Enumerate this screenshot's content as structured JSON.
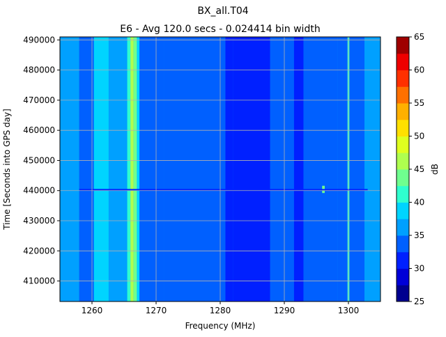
{
  "chart_data": {
    "type": "heatmap",
    "title": "BX_all.T04",
    "subtitle": "E6 - Avg 120.0 secs - 0.024414 bin width",
    "xlabel": "Frequency (MHz)",
    "ylabel": "Time [Seconds into GPS day]",
    "xlim": [
      1255,
      1305
    ],
    "ylim": [
      403200,
      491000
    ],
    "x_ticks": [
      1260,
      1270,
      1280,
      1290,
      1300
    ],
    "y_ticks": [
      410000,
      420000,
      430000,
      440000,
      450000,
      460000,
      470000,
      480000,
      490000
    ],
    "grid": true,
    "colorbar": {
      "label": "dB",
      "min": 25,
      "max": 65,
      "ticks": [
        25,
        30,
        35,
        40,
        45,
        50,
        55,
        60,
        65
      ],
      "levels": [
        {
          "from": 25.0,
          "to": 27.5,
          "color": "#00008f"
        },
        {
          "from": 27.5,
          "to": 30.0,
          "color": "#0000d8"
        },
        {
          "from": 30.0,
          "to": 32.5,
          "color": "#0020ff"
        },
        {
          "from": 32.5,
          "to": 35.0,
          "color": "#0060ff"
        },
        {
          "from": 35.0,
          "to": 37.5,
          "color": "#00a0ff"
        },
        {
          "from": 37.5,
          "to": 40.0,
          "color": "#00d4ff"
        },
        {
          "from": 40.0,
          "to": 42.5,
          "color": "#2fffcf"
        },
        {
          "from": 42.5,
          "to": 45.0,
          "color": "#6fff8f"
        },
        {
          "from": 45.0,
          "to": 47.5,
          "color": "#afff4f"
        },
        {
          "from": 47.5,
          "to": 50.0,
          "color": "#dfff1f"
        },
        {
          "from": 50.0,
          "to": 52.5,
          "color": "#ffe000"
        },
        {
          "from": 52.5,
          "to": 55.0,
          "color": "#ffb000"
        },
        {
          "from": 55.0,
          "to": 57.5,
          "color": "#ff7000"
        },
        {
          "from": 57.5,
          "to": 60.0,
          "color": "#ff3000"
        },
        {
          "from": 60.0,
          "to": 62.5,
          "color": "#ee0000"
        },
        {
          "from": 62.5,
          "to": 65.0,
          "color": "#9f0000"
        }
      ]
    },
    "background_level_db": 36,
    "frequency_bands": [
      {
        "from": 1255.0,
        "to": 1258.0,
        "db": 36
      },
      {
        "from": 1258.0,
        "to": 1260.3,
        "db": 33
      },
      {
        "from": 1260.3,
        "to": 1262.6,
        "db": 38
      },
      {
        "from": 1262.6,
        "to": 1265.5,
        "db": 35
      },
      {
        "from": 1265.5,
        "to": 1266.0,
        "db": 41
      },
      {
        "from": 1266.0,
        "to": 1266.5,
        "db": 46
      },
      {
        "from": 1266.5,
        "to": 1267.0,
        "db": 44
      },
      {
        "from": 1267.0,
        "to": 1267.4,
        "db": 39
      },
      {
        "from": 1267.4,
        "to": 1271.2,
        "db": 33
      },
      {
        "from": 1271.2,
        "to": 1280.8,
        "db": 34
      },
      {
        "from": 1280.8,
        "to": 1282.0,
        "db": 32
      },
      {
        "from": 1282.0,
        "to": 1287.8,
        "db": 31
      },
      {
        "from": 1287.8,
        "to": 1291.5,
        "db": 34
      },
      {
        "from": 1291.5,
        "to": 1293.0,
        "db": 32
      },
      {
        "from": 1293.0,
        "to": 1298.3,
        "db": 34
      },
      {
        "from": 1298.3,
        "to": 1302.5,
        "db": 33
      },
      {
        "from": 1302.5,
        "to": 1305.0,
        "db": 36
      }
    ],
    "spikes": [
      {
        "x": 1300.0,
        "width": 0.3,
        "db": 41,
        "t_from": 403200,
        "t_to": 491000
      },
      {
        "x": 1296.1,
        "width": 0.4,
        "db": 44,
        "t_from": 439200,
        "t_to": 441600
      }
    ],
    "interference_line": {
      "t": 440300,
      "x_from": 1258,
      "x_to": 1303,
      "db": 31
    }
  }
}
